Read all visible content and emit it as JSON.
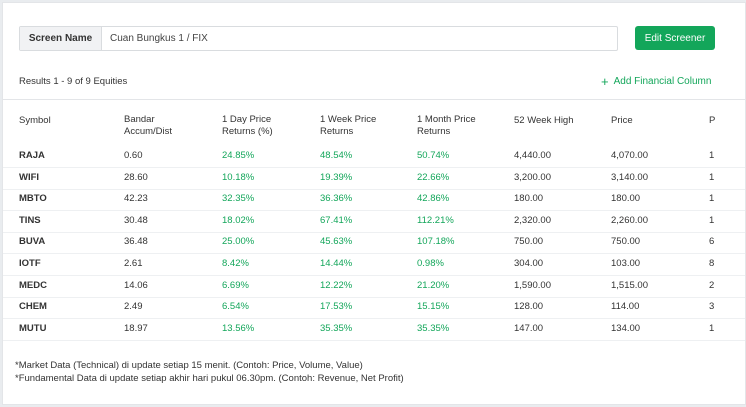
{
  "screen": {
    "label": "Screen Name",
    "value": "Cuan Bungkus 1 / FIX",
    "edit_label": "Edit Screener"
  },
  "results_text": "Results 1 - 9 of 9 Equities",
  "add_column_label": "Add Financial Column",
  "columns": {
    "symbol": "Symbol",
    "bandar_1": "Bandar",
    "bandar_2": "Accum/Dist",
    "day_1": "1 Day Price",
    "day_2": "Returns (%)",
    "week_1": "1 Week Price",
    "week_2": "Returns",
    "month_1": "1 Month Price",
    "month_2": "Returns",
    "high52": "52 Week High",
    "price": "Price",
    "extra": "P"
  },
  "rows": [
    {
      "symbol": "RAJA",
      "bandar": "0.60",
      "day": "24.85%",
      "week": "48.54%",
      "month": "50.74%",
      "high52": "4,440.00",
      "price": "4,070.00",
      "extra": "1"
    },
    {
      "symbol": "WIFI",
      "bandar": "28.60",
      "day": "10.18%",
      "week": "19.39%",
      "month": "22.66%",
      "high52": "3,200.00",
      "price": "3,140.00",
      "extra": "1"
    },
    {
      "symbol": "MBTO",
      "bandar": "42.23",
      "day": "32.35%",
      "week": "36.36%",
      "month": "42.86%",
      "high52": "180.00",
      "price": "180.00",
      "extra": "1"
    },
    {
      "symbol": "TINS",
      "bandar": "30.48",
      "day": "18.02%",
      "week": "67.41%",
      "month": "112.21%",
      "high52": "2,320.00",
      "price": "2,260.00",
      "extra": "1"
    },
    {
      "symbol": "BUVA",
      "bandar": "36.48",
      "day": "25.00%",
      "week": "45.63%",
      "month": "107.18%",
      "high52": "750.00",
      "price": "750.00",
      "extra": "6"
    },
    {
      "symbol": "IOTF",
      "bandar": "2.61",
      "day": "8.42%",
      "week": "14.44%",
      "month": "0.98%",
      "high52": "304.00",
      "price": "103.00",
      "extra": "8"
    },
    {
      "symbol": "MEDC",
      "bandar": "14.06",
      "day": "6.69%",
      "week": "12.22%",
      "month": "21.20%",
      "high52": "1,590.00",
      "price": "1,515.00",
      "extra": "2"
    },
    {
      "symbol": "CHEM",
      "bandar": "2.49",
      "day": "6.54%",
      "week": "17.53%",
      "month": "15.15%",
      "high52": "128.00",
      "price": "114.00",
      "extra": "3"
    },
    {
      "symbol": "MUTU",
      "bandar": "18.97",
      "day": "13.56%",
      "week": "35.35%",
      "month": "35.35%",
      "high52": "147.00",
      "price": "134.00",
      "extra": "1"
    }
  ],
  "notes": [
    "*Market Data (Technical) di update setiap 15 menit. (Contoh: Price, Volume, Value)",
    "*Fundamental Data di update setiap akhir hari pukul 06.30pm. (Contoh: Revenue, Net Profit)"
  ],
  "colors": {
    "accent": "#13a65a"
  }
}
